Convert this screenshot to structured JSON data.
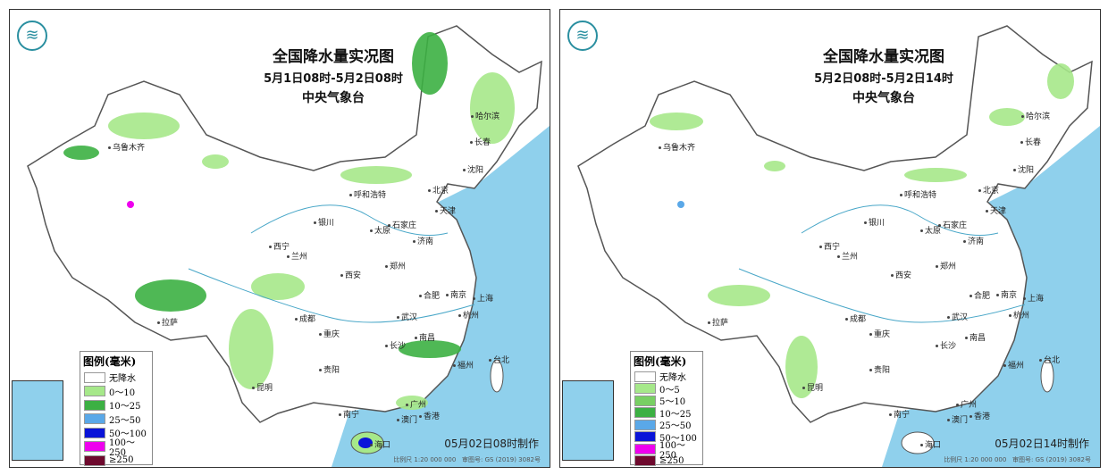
{
  "colors": {
    "sea": "#8fd0ec",
    "land": "#ffffff",
    "light_green": "#a6e88a",
    "green": "#3cb043",
    "mid_green": "#78cf63",
    "blue": "#5aa8e8",
    "dark_blue": "#0a14d8",
    "magenta": "#ee00ee",
    "maroon": "#6e0a2e"
  },
  "cities": [
    "乌鲁木齐",
    "哈尔滨",
    "长春",
    "沈阳",
    "呼和浩特",
    "北京",
    "天津",
    "银川",
    "石家庄",
    "太原",
    "济南",
    "西宁",
    "兰州",
    "郑州",
    "西安",
    "合肥",
    "南京",
    "上海",
    "成都",
    "武汉",
    "杭州",
    "重庆",
    "长沙",
    "南昌",
    "拉萨",
    "贵阳",
    "福州",
    "台北",
    "昆明",
    "南宁",
    "广州",
    "澳门",
    "香港",
    "海口"
  ],
  "panels": [
    {
      "title": "全国降水量实况图",
      "period": "5月1日08时-5月2日08时",
      "org": "中央气象台",
      "legend_title": "图例(毫米)",
      "legend": [
        {
          "label": "无降水",
          "color": "#ffffff"
        },
        {
          "label": "0～10",
          "color": "#a6e88a"
        },
        {
          "label": "10～25",
          "color": "#3cb043"
        },
        {
          "label": "25～50",
          "color": "#5aa8e8"
        },
        {
          "label": "50～100",
          "color": "#0a14d8"
        },
        {
          "label": "100～250",
          "color": "#ee00ee"
        },
        {
          "label": "≥250",
          "color": "#6e0a2e"
        }
      ],
      "made": "05月02日08时制作",
      "scale": "比例尺 1:20 000 000",
      "approval": "审图号: GS (2019) 3082号"
    },
    {
      "title": "全国降水量实况图",
      "period": "5月2日08时-5月2日14时",
      "org": "中央气象台",
      "legend_title": "图例(毫米)",
      "legend": [
        {
          "label": "无降水",
          "color": "#ffffff"
        },
        {
          "label": "0～5",
          "color": "#a6e88a"
        },
        {
          "label": "5～10",
          "color": "#78cf63"
        },
        {
          "label": "10～25",
          "color": "#3cb043"
        },
        {
          "label": "25～50",
          "color": "#5aa8e8"
        },
        {
          "label": "50～100",
          "color": "#0a14d8"
        },
        {
          "label": "100～250",
          "color": "#ee00ee"
        },
        {
          "label": "≥250",
          "color": "#6e0a2e"
        }
      ],
      "made": "05月02日14时制作",
      "scale": "比例尺 1:20 000 000",
      "approval": "审图号: GS (2019) 3082号"
    }
  ]
}
